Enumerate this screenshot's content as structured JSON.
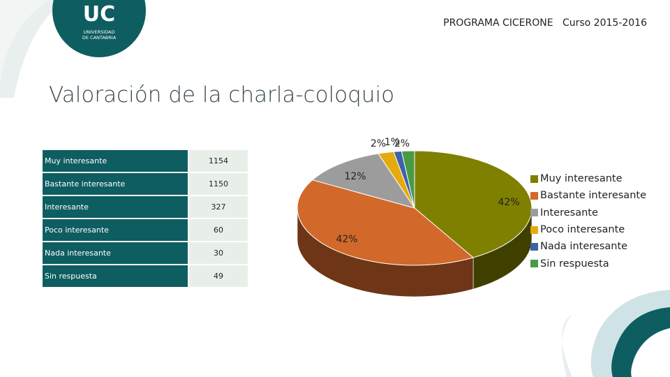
{
  "header": {
    "program": "PROGRAMA CICERONE",
    "course": "Curso 2015-2016"
  },
  "logo": {
    "letters": "UC",
    "line1": "UNIVERSIDAD",
    "line2": "DE CANTABRIA",
    "color": "#0e5d61"
  },
  "title": "Valoración de la charla-coloquio",
  "table": {
    "rows": [
      {
        "label": "Muy interesante",
        "value": "1154"
      },
      {
        "label": "Bastante interesante",
        "value": "1150"
      },
      {
        "label": "Interesante",
        "value": "327"
      },
      {
        "label": "Poco interesante",
        "value": "60"
      },
      {
        "label": "Nada interesante",
        "value": "30"
      },
      {
        "label": "Sin respuesta",
        "value": "49"
      }
    ]
  },
  "chart_data": {
    "type": "pie",
    "title": "",
    "categories": [
      "Muy interesante",
      "Bastante interesante",
      "Interesante",
      "Poco interesante",
      "Nada interesante",
      "Sin respuesta"
    ],
    "values": [
      1154,
      1150,
      327,
      60,
      30,
      49
    ],
    "percent_labels": [
      "42%",
      "42%",
      "12%",
      "2%",
      "1%",
      "2%"
    ],
    "colors": [
      "#7f8000",
      "#d2692a",
      "#9c9c9c",
      "#e5ab0e",
      "#3e62a8",
      "#4a9a45"
    ],
    "side_colors": [
      "#3f4000",
      "#6e3616",
      "#565656",
      "#806008",
      "#213a66",
      "#28542a"
    ],
    "legend_position": "right",
    "style": "3d"
  }
}
